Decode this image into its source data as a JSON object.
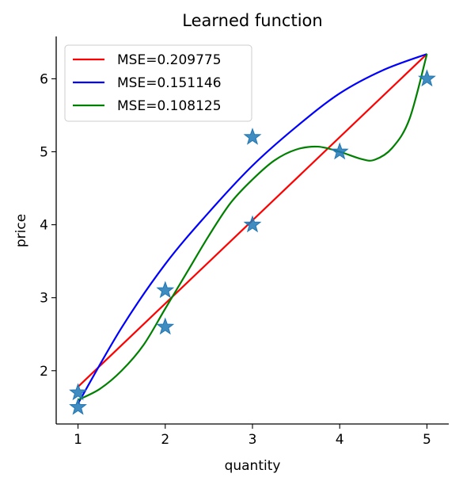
{
  "chart_data": {
    "type": "line",
    "title": "Learned function",
    "xlabel": "quantity",
    "ylabel": "price",
    "xlim": [
      0.75,
      5.25
    ],
    "ylim": [
      1.27,
      6.58
    ],
    "xticks": [
      1,
      2,
      3,
      4,
      5
    ],
    "yticks": [
      2,
      3,
      4,
      5,
      6
    ],
    "grid": false,
    "legend_position": "top-left",
    "scatter": {
      "marker": "star",
      "color": "#1f77b4",
      "points": [
        {
          "x": 1,
          "y": 1.5
        },
        {
          "x": 1,
          "y": 1.7
        },
        {
          "x": 2,
          "y": 2.6
        },
        {
          "x": 2,
          "y": 3.1
        },
        {
          "x": 3,
          "y": 4.0
        },
        {
          "x": 3,
          "y": 5.2
        },
        {
          "x": 4,
          "y": 5.0
        },
        {
          "x": 5,
          "y": 6.0
        }
      ]
    },
    "series": [
      {
        "name": "MSE=0.209775",
        "color": "#ff0000",
        "x": [
          1,
          5
        ],
        "y": [
          1.78,
          6.34
        ]
      },
      {
        "name": "MSE=0.151146",
        "color": "#0000ff",
        "x": [
          1.0,
          1.5,
          2.0,
          2.5,
          3.0,
          3.5,
          4.0,
          4.5,
          5.0
        ],
        "y": [
          1.55,
          2.59,
          3.46,
          4.17,
          4.81,
          5.34,
          5.8,
          6.12,
          6.34
        ]
      },
      {
        "name": "MSE=0.108125",
        "color": "#008000",
        "x": [
          1.0,
          1.25,
          1.5,
          1.75,
          2.0,
          2.25,
          2.5,
          2.75,
          3.0,
          3.25,
          3.5,
          3.75,
          4.0,
          4.25,
          4.4,
          4.6,
          4.8,
          5.0
        ],
        "y": [
          1.6,
          1.75,
          2.0,
          2.35,
          2.85,
          3.35,
          3.85,
          4.3,
          4.62,
          4.88,
          5.03,
          5.07,
          5.0,
          4.9,
          4.89,
          5.05,
          5.45,
          6.34
        ]
      }
    ]
  }
}
